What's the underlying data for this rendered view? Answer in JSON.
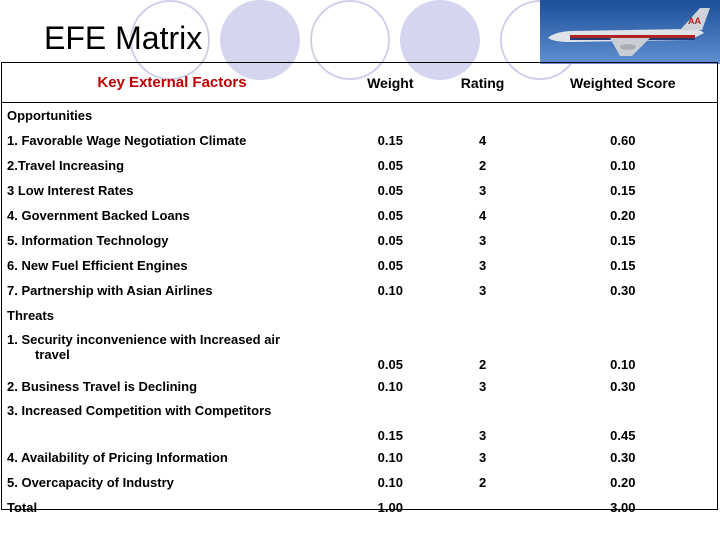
{
  "title": "EFE Matrix",
  "logo_text": "AA",
  "headers": {
    "factor": "Key External Factors",
    "weight": "Weight",
    "rating": "Rating",
    "score": "Weighted Score"
  },
  "opportunities_label": "Opportunities",
  "opportunities": [
    {
      "factor": "1. Favorable Wage Negotiation Climate",
      "weight": "0.15",
      "rating": "4",
      "score": "0.60"
    },
    {
      "factor": "2.Travel Increasing",
      "weight": "0.05",
      "rating": "2",
      "score": "0.10"
    },
    {
      "factor": "3 Low Interest Rates",
      "weight": "0.05",
      "rating": "3",
      "score": "0.15"
    },
    {
      "factor": "4. Government Backed Loans",
      "weight": "0.05",
      "rating": "4",
      "score": "0.20"
    },
    {
      "factor": "5. Information Technology",
      "weight": "0.05",
      "rating": "3",
      "score": "0.15"
    },
    {
      "factor": "6. New Fuel Efficient Engines",
      "weight": "0.05",
      "rating": "3",
      "score": "0.15"
    },
    {
      "factor": "7. Partnership with Asian Airlines",
      "weight": "0.10",
      "rating": "3",
      "score": "0.30"
    }
  ],
  "threats_label": "Threats",
  "threats": [
    {
      "factor": "1. Security inconvenience with Increased air",
      "factor_cont": "travel",
      "weight": "0.05",
      "rating": "2",
      "score": "0.10"
    },
    {
      "factor": "2. Business Travel is Declining",
      "weight": "0.10",
      "rating": "3",
      "score": "0.30"
    },
    {
      "factor": "3. Increased Competition with Competitors",
      "weight": "0.15",
      "rating": "3",
      "score": "0.45"
    },
    {
      "factor": "4. Availability of Pricing Information",
      "weight": "0.10",
      "rating": "3",
      "score": "0.30"
    },
    {
      "factor": "5. Overcapacity of Industry",
      "weight": "0.10",
      "rating": "2",
      "score": "0.20"
    }
  ],
  "total": {
    "label": "Total",
    "weight": "1.00",
    "rating": "",
    "score": "3.00"
  }
}
